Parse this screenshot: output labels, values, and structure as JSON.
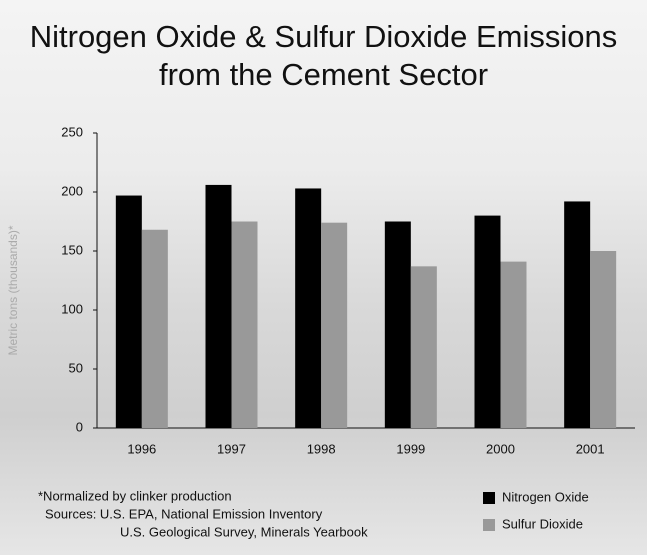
{
  "chart_data": {
    "type": "bar",
    "title": "Nitrogen Oxide & Sulfur Dioxide Emissions from the Cement Sector",
    "y_label": "Metric tons (thousands)*",
    "categories": [
      "1996",
      "1997",
      "1998",
      "1999",
      "2000",
      "2001"
    ],
    "series": [
      {
        "name": "Nitrogen Oxide",
        "color": "#000000",
        "values": [
          197,
          206,
          203,
          175,
          180,
          192
        ]
      },
      {
        "name": "Sulfur Dioxide",
        "color": "#999999",
        "values": [
          168,
          175,
          174,
          137,
          141,
          150
        ]
      }
    ],
    "ylim": [
      0,
      250
    ],
    "yticks": [
      0,
      50,
      100,
      150,
      200,
      250
    ],
    "notes": [
      "*Normalized by clinker production",
      "Sources: U.S. EPA, National Emission Inventory",
      "U.S. Geological Survey, Minerals Yearbook"
    ]
  }
}
